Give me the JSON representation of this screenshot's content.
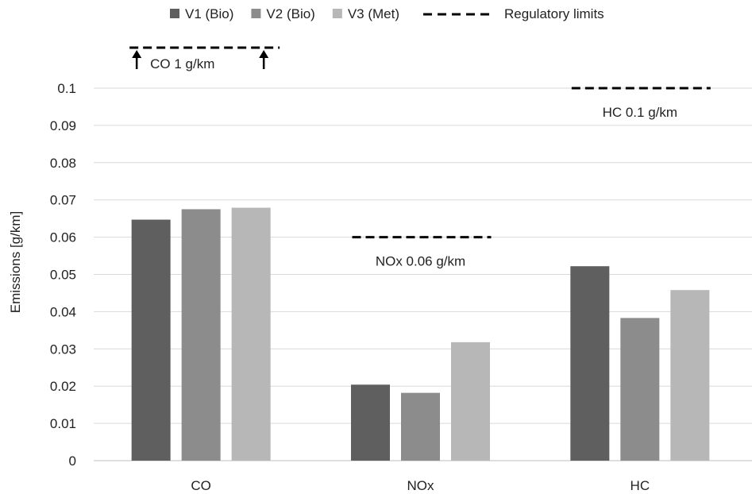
{
  "chart_data": {
    "type": "bar",
    "title": "",
    "xlabel": "",
    "ylabel": "Emissions [g/km]",
    "ylim": [
      0,
      0.1
    ],
    "yticks": [
      "0",
      "0.01",
      "0.02",
      "0.03",
      "0.04",
      "0.05",
      "0.06",
      "0.07",
      "0.08",
      "0.09",
      "0.1"
    ],
    "grid": true,
    "legend_position": "top",
    "categories": [
      "CO",
      "NOx",
      "HC"
    ],
    "series": [
      {
        "name": "V1 (Bio)",
        "color": "#5f5f5f",
        "values": [
          0.0647,
          0.0204,
          0.0522
        ]
      },
      {
        "name": "V2 (Bio)",
        "color": "#8c8c8c",
        "values": [
          0.0675,
          0.0182,
          0.0383
        ]
      },
      {
        "name": "V3 (Met)",
        "color": "#b7b7b7",
        "values": [
          0.0679,
          0.0318,
          0.0458
        ]
      }
    ],
    "regulatory_limits": {
      "legend_label": "Regulatory limits",
      "items": [
        {
          "category": "CO",
          "value": 1,
          "label": "CO 1 g/km",
          "off_scale": true
        },
        {
          "category": "NOx",
          "value": 0.06,
          "label": "NOx 0.06 g/km"
        },
        {
          "category": "HC",
          "value": 0.1,
          "label": "HC 0.1 g/km"
        }
      ]
    }
  }
}
